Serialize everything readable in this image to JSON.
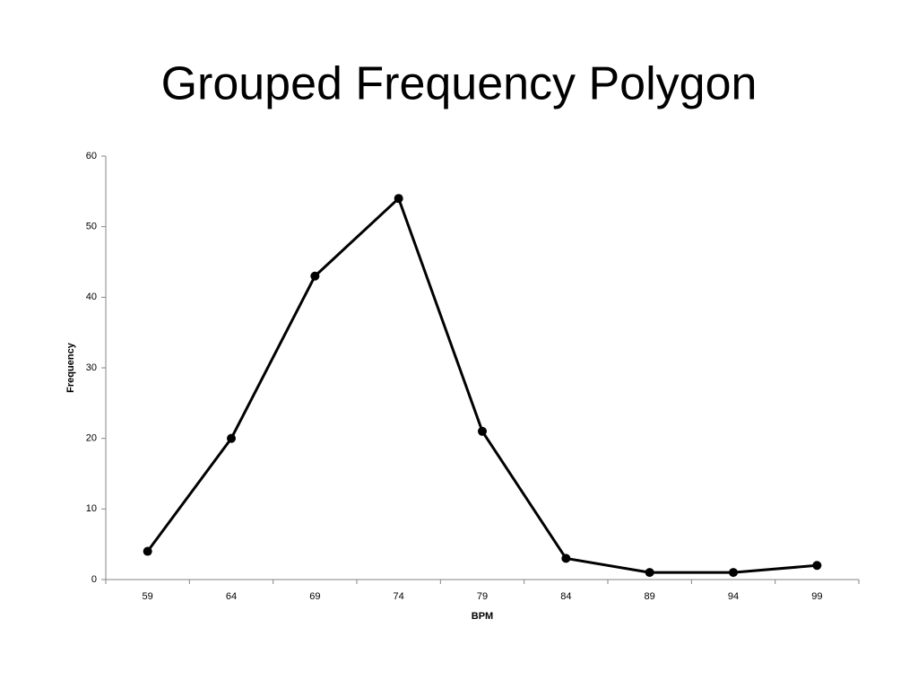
{
  "chart_data": {
    "type": "line",
    "title": "Grouped Frequency Polygon",
    "x_label": "BPM",
    "y_label": "Frequency",
    "categories": [
      "59",
      "64",
      "69",
      "74",
      "79",
      "84",
      "89",
      "94",
      "99"
    ],
    "series": [
      {
        "name": "Frequency",
        "color": "#000000",
        "values": [
          4,
          20,
          43,
          54,
          21,
          3,
          1,
          1,
          2
        ]
      }
    ],
    "ylim": [
      0,
      60
    ],
    "yticks": [
      0,
      10,
      20,
      30,
      40,
      50,
      60
    ],
    "grid": false,
    "legend": false
  }
}
